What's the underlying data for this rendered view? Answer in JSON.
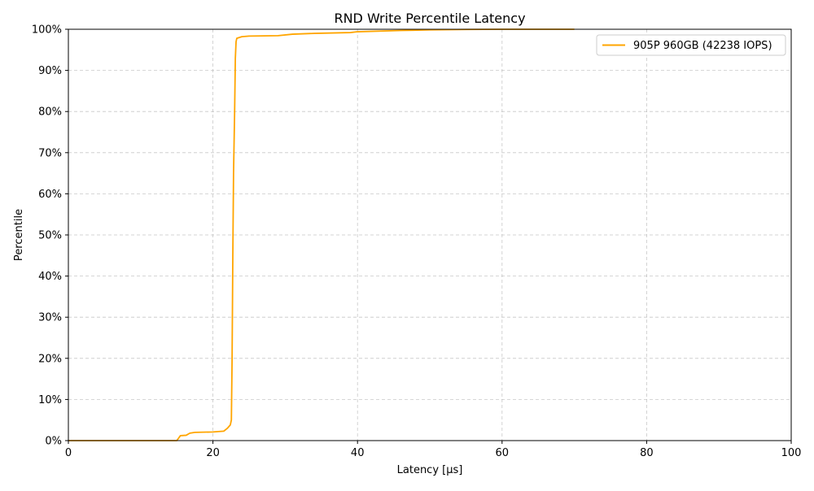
{
  "chart_data": {
    "type": "line",
    "title": "RND Write Percentile Latency",
    "xlabel": "Latency [µs]",
    "ylabel": "Percentile",
    "xlim": [
      0,
      100
    ],
    "ylim": [
      0,
      100
    ],
    "x_ticks": [
      0,
      20,
      40,
      60,
      80,
      100
    ],
    "x_tick_labels": [
      "0",
      "20",
      "40",
      "60",
      "80",
      "100"
    ],
    "y_ticks": [
      0,
      10,
      20,
      30,
      40,
      50,
      60,
      70,
      80,
      90,
      100
    ],
    "y_tick_labels": [
      "0%",
      "10%",
      "20%",
      "30%",
      "40%",
      "50%",
      "60%",
      "70%",
      "80%",
      "90%",
      "100%"
    ],
    "grid": true,
    "legend_position": "top-right",
    "series": [
      {
        "name": "905P 960GB (42238 IOPS)",
        "color": "#ffa500",
        "points": [
          [
            0,
            0
          ],
          [
            15.0,
            0
          ],
          [
            15.5,
            1.2
          ],
          [
            16.3,
            1.3
          ],
          [
            16.8,
            1.8
          ],
          [
            17.5,
            2.0
          ],
          [
            20.0,
            2.1
          ],
          [
            21.5,
            2.3
          ],
          [
            22.0,
            3.0
          ],
          [
            22.4,
            3.8
          ],
          [
            22.55,
            5.0
          ],
          [
            22.65,
            20.0
          ],
          [
            22.75,
            45.0
          ],
          [
            22.85,
            65.0
          ],
          [
            23.0,
            80.0
          ],
          [
            23.1,
            93.0
          ],
          [
            23.2,
            97.0
          ],
          [
            23.3,
            97.8
          ],
          [
            24.0,
            98.2
          ],
          [
            25.0,
            98.35
          ],
          [
            29.0,
            98.45
          ],
          [
            31.0,
            98.8
          ],
          [
            34.0,
            99.0
          ],
          [
            39.0,
            99.2
          ],
          [
            40.0,
            99.4
          ],
          [
            46.0,
            99.7
          ],
          [
            50.0,
            99.85
          ],
          [
            55.0,
            99.95
          ],
          [
            60.0,
            100.0
          ],
          [
            70.0,
            100.0
          ]
        ]
      }
    ]
  }
}
